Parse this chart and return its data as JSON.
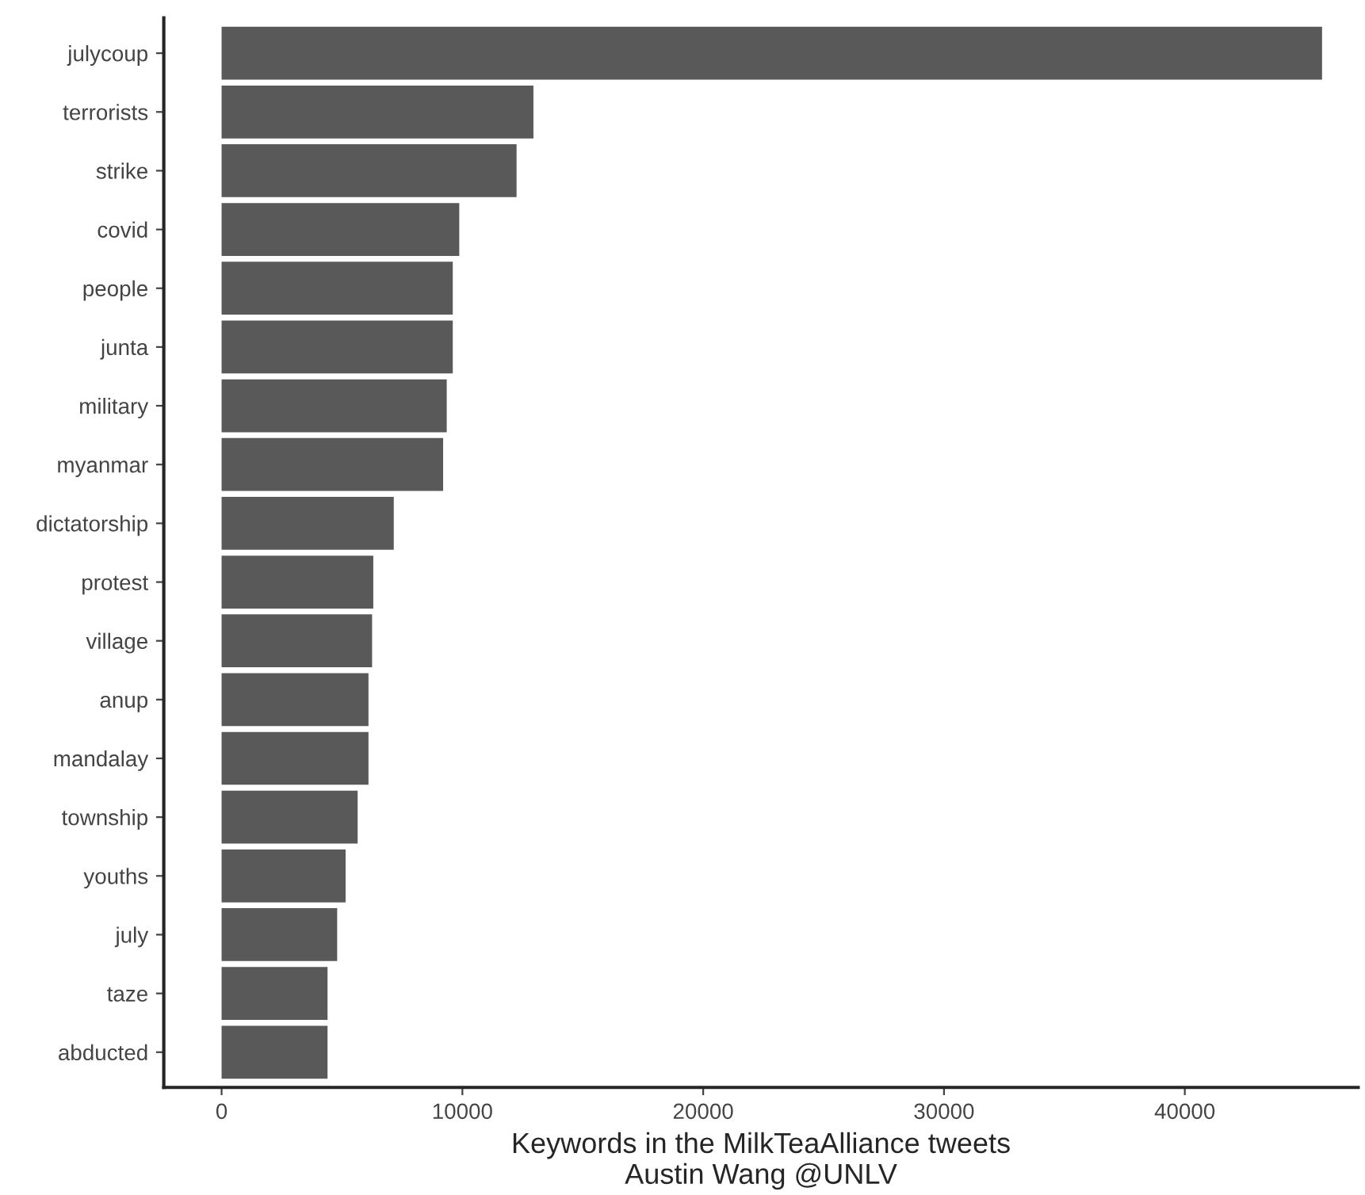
{
  "chart_data": {
    "type": "bar",
    "orientation": "horizontal",
    "xlabel": "Keywords in the MilkTeaAlliance tweets\nAustin Wang @UNLV",
    "categories": [
      "julycoup",
      "terrorists",
      "strike",
      "covid",
      "people",
      "junta",
      "military",
      "myanmar",
      "dictatorship",
      "protest",
      "village",
      "anup",
      "mandalay",
      "township",
      "youths",
      "july",
      "taze",
      "abducted"
    ],
    "values": [
      45700,
      12950,
      12250,
      9870,
      9600,
      9600,
      9350,
      9200,
      7150,
      6300,
      6250,
      6100,
      6100,
      5650,
      5150,
      4800,
      4400,
      4400
    ],
    "color": "#595959",
    "xlim": [
      -2400,
      47200
    ],
    "xticks": [
      0,
      10000,
      20000,
      30000,
      40000
    ],
    "grid": false,
    "legend": false
  }
}
